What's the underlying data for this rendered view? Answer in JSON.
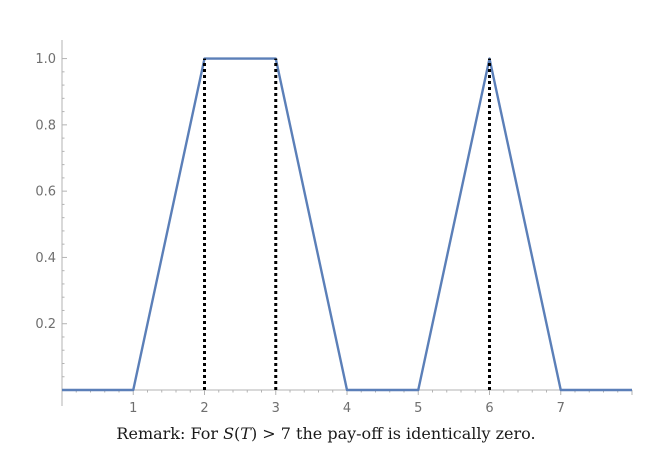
{
  "chart_data": {
    "type": "line",
    "x": [
      0,
      1,
      2,
      3,
      4,
      5,
      6,
      7,
      8
    ],
    "series": [
      {
        "values": [
          0,
          0,
          1,
          1,
          0,
          0,
          1,
          0,
          0
        ],
        "color": "#5b7fb8"
      }
    ],
    "vlines": [
      {
        "x": 2,
        "y_top": 1,
        "style": "dotted",
        "color": "#000000"
      },
      {
        "x": 3,
        "y_top": 1,
        "style": "dotted",
        "color": "#000000"
      },
      {
        "x": 6,
        "y_top": 1,
        "style": "dotted",
        "color": "#000000"
      }
    ],
    "xlim": [
      0,
      8
    ],
    "ylim": [
      0,
      1.05
    ],
    "xticks": [
      "1",
      "2",
      "3",
      "4",
      "5",
      "6",
      "7"
    ],
    "yticks": [
      "0.2",
      "0.4",
      "0.6",
      "0.8",
      "1.0"
    ],
    "xlabel": "",
    "ylabel": "",
    "grid": false
  },
  "caption": {
    "prefix": "Remark: For ",
    "S": "S",
    "lparen": "(",
    "T": "T",
    "rparen_gt": ") > 7",
    "suffix": " the pay-off is identically zero."
  }
}
